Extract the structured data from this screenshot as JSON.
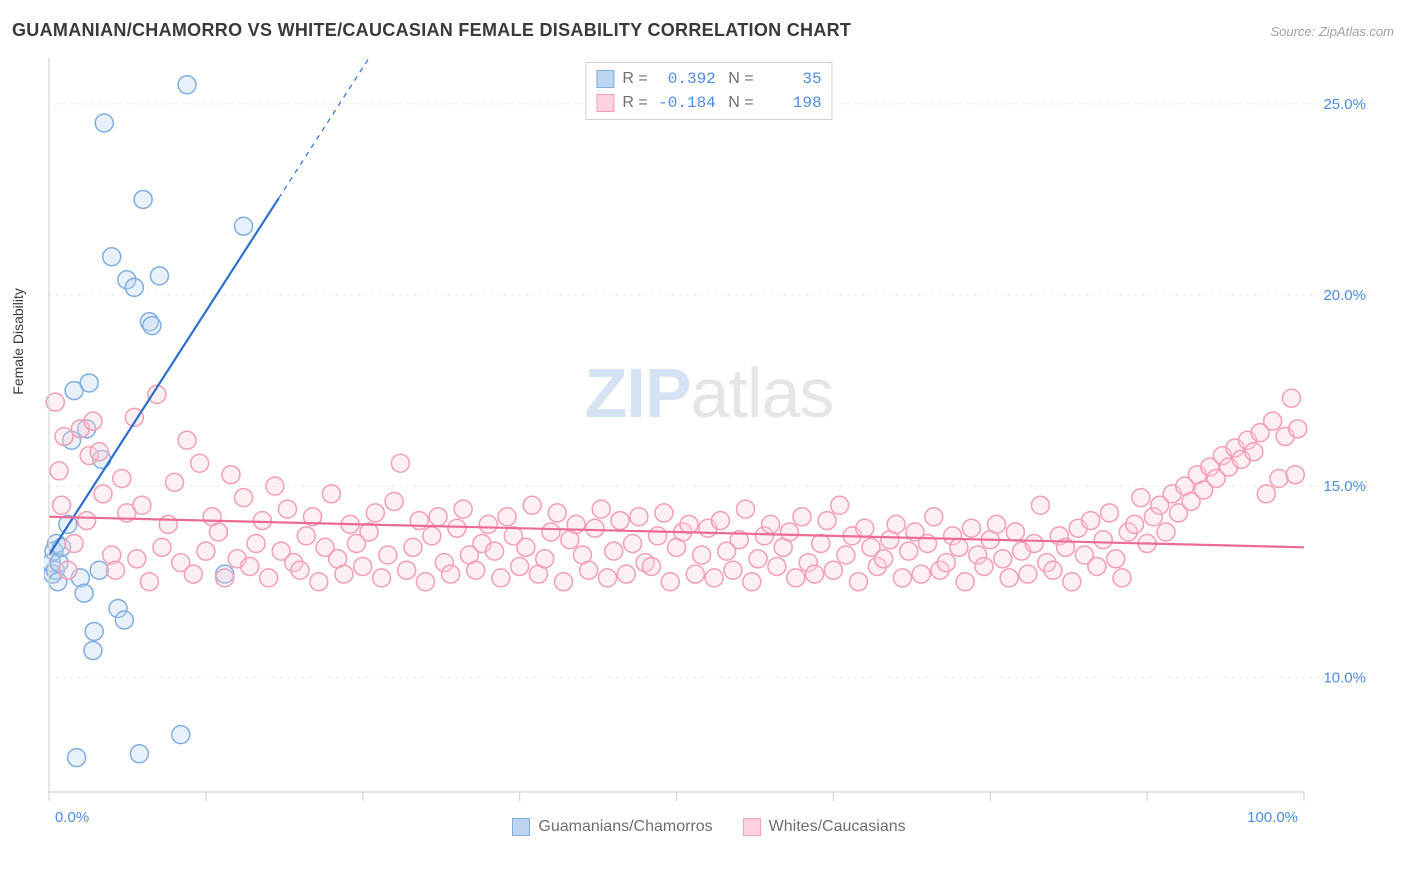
{
  "title": "GUAMANIAN/CHAMORRO VS WHITE/CAUCASIAN FEMALE DISABILITY CORRELATION CHART",
  "source": "Source: ZipAtlas.com",
  "y_axis_label": "Female Disability",
  "watermark": {
    "zip": "ZIP",
    "atlas": "atlas"
  },
  "chart": {
    "type": "scatter",
    "xlim": [
      0,
      100
    ],
    "ylim": [
      7.0,
      26.2
    ],
    "x_ticks": [
      0,
      100
    ],
    "x_tick_labels": [
      "0.0%",
      "100.0%"
    ],
    "x_minor_ticks": [
      12.5,
      25,
      37.5,
      50,
      62.5,
      75,
      87.5
    ],
    "y_ticks": [
      10,
      15,
      20,
      25
    ],
    "y_tick_labels": [
      "10.0%",
      "15.0%",
      "20.0%",
      "25.0%"
    ],
    "grid_color": "#e8e8e8",
    "axis_color": "#d5d5d5",
    "background_color": "#ffffff",
    "marker_radius": 9,
    "marker_stroke_width": 1.5,
    "marker_fill_opacity": 0.35,
    "series": [
      {
        "name": "Guamanians/Chamorros",
        "color_fill": "#bcd4ef",
        "color_stroke": "#7faee0",
        "trend": {
          "x1": 0,
          "y1": 13.2,
          "x2": 25.5,
          "y2": 26.2,
          "dashed_from_x": 18.3,
          "stroke": "#2d6fcf",
          "stroke_width": 2.2
        },
        "R": "0.392",
        "N": "35",
        "points": [
          [
            0.2,
            13.0
          ],
          [
            0.3,
            12.7
          ],
          [
            0.4,
            13.3
          ],
          [
            0.5,
            12.8
          ],
          [
            0.6,
            13.5
          ],
          [
            0.7,
            12.5
          ],
          [
            0.8,
            13.0
          ],
          [
            1.0,
            13.4
          ],
          [
            1.8,
            16.2
          ],
          [
            2.0,
            17.5
          ],
          [
            2.2,
            7.9
          ],
          [
            2.5,
            12.6
          ],
          [
            3.0,
            16.5
          ],
          [
            3.2,
            17.7
          ],
          [
            3.5,
            10.7
          ],
          [
            3.6,
            11.2
          ],
          [
            4.0,
            12.8
          ],
          [
            4.2,
            15.7
          ],
          [
            4.4,
            24.5
          ],
          [
            5.0,
            21.0
          ],
          [
            5.5,
            11.8
          ],
          [
            6.0,
            11.5
          ],
          [
            6.2,
            20.4
          ],
          [
            6.8,
            20.2
          ],
          [
            7.2,
            8.0
          ],
          [
            7.5,
            22.5
          ],
          [
            8.0,
            19.3
          ],
          [
            8.2,
            19.2
          ],
          [
            8.8,
            20.5
          ],
          [
            10.5,
            8.5
          ],
          [
            11.0,
            25.5
          ],
          [
            14.0,
            12.7
          ],
          [
            15.5,
            21.8
          ],
          [
            1.5,
            14.0
          ],
          [
            2.8,
            12.2
          ]
        ]
      },
      {
        "name": "Whites/Caucasians",
        "color_fill": "#fcd2dc",
        "color_stroke": "#f29eb4",
        "trend": {
          "x1": 0,
          "y1": 14.2,
          "x2": 100,
          "y2": 13.4,
          "stroke": "#ec6b93",
          "stroke_width": 2.2
        },
        "R": "-0.184",
        "N": "198",
        "points": [
          [
            0.5,
            17.2
          ],
          [
            0.8,
            15.4
          ],
          [
            1.0,
            14.5
          ],
          [
            1.2,
            16.3
          ],
          [
            1.5,
            12.8
          ],
          [
            2.0,
            13.5
          ],
          [
            2.5,
            16.5
          ],
          [
            3.0,
            14.1
          ],
          [
            3.2,
            15.8
          ],
          [
            3.5,
            16.7
          ],
          [
            4.0,
            15.9
          ],
          [
            4.3,
            14.8
          ],
          [
            5.0,
            13.2
          ],
          [
            5.3,
            12.8
          ],
          [
            5.8,
            15.2
          ],
          [
            6.2,
            14.3
          ],
          [
            6.8,
            16.8
          ],
          [
            7.0,
            13.1
          ],
          [
            7.4,
            14.5
          ],
          [
            8.0,
            12.5
          ],
          [
            8.6,
            17.4
          ],
          [
            9.0,
            13.4
          ],
          [
            9.5,
            14.0
          ],
          [
            10.0,
            15.1
          ],
          [
            10.5,
            13.0
          ],
          [
            11.0,
            16.2
          ],
          [
            11.5,
            12.7
          ],
          [
            12.0,
            15.6
          ],
          [
            12.5,
            13.3
          ],
          [
            13.0,
            14.2
          ],
          [
            13.5,
            13.8
          ],
          [
            14.0,
            12.6
          ],
          [
            14.5,
            15.3
          ],
          [
            15.0,
            13.1
          ],
          [
            15.5,
            14.7
          ],
          [
            16.0,
            12.9
          ],
          [
            16.5,
            13.5
          ],
          [
            17.0,
            14.1
          ],
          [
            17.5,
            12.6
          ],
          [
            18.0,
            15.0
          ],
          [
            18.5,
            13.3
          ],
          [
            19.0,
            14.4
          ],
          [
            19.5,
            13.0
          ],
          [
            20.0,
            12.8
          ],
          [
            20.5,
            13.7
          ],
          [
            21.0,
            14.2
          ],
          [
            21.5,
            12.5
          ],
          [
            22.0,
            13.4
          ],
          [
            22.5,
            14.8
          ],
          [
            23.0,
            13.1
          ],
          [
            23.5,
            12.7
          ],
          [
            24.0,
            14.0
          ],
          [
            24.5,
            13.5
          ],
          [
            25.0,
            12.9
          ],
          [
            25.5,
            13.8
          ],
          [
            26.0,
            14.3
          ],
          [
            26.5,
            12.6
          ],
          [
            27.0,
            13.2
          ],
          [
            27.5,
            14.6
          ],
          [
            28.0,
            15.6
          ],
          [
            28.5,
            12.8
          ],
          [
            29.0,
            13.4
          ],
          [
            29.5,
            14.1
          ],
          [
            30.0,
            12.5
          ],
          [
            30.5,
            13.7
          ],
          [
            31.0,
            14.2
          ],
          [
            31.5,
            13.0
          ],
          [
            32.0,
            12.7
          ],
          [
            32.5,
            13.9
          ],
          [
            33.0,
            14.4
          ],
          [
            33.5,
            13.2
          ],
          [
            34.0,
            12.8
          ],
          [
            34.5,
            13.5
          ],
          [
            35.0,
            14.0
          ],
          [
            35.5,
            13.3
          ],
          [
            36.0,
            12.6
          ],
          [
            36.5,
            14.2
          ],
          [
            37.0,
            13.7
          ],
          [
            37.5,
            12.9
          ],
          [
            38.0,
            13.4
          ],
          [
            38.5,
            14.5
          ],
          [
            39.0,
            12.7
          ],
          [
            39.5,
            13.1
          ],
          [
            40.0,
            13.8
          ],
          [
            40.5,
            14.3
          ],
          [
            41.0,
            12.5
          ],
          [
            41.5,
            13.6
          ],
          [
            42.0,
            14.0
          ],
          [
            42.5,
            13.2
          ],
          [
            43.0,
            12.8
          ],
          [
            43.5,
            13.9
          ],
          [
            44.0,
            14.4
          ],
          [
            44.5,
            12.6
          ],
          [
            45.0,
            13.3
          ],
          [
            45.5,
            14.1
          ],
          [
            46.0,
            12.7
          ],
          [
            46.5,
            13.5
          ],
          [
            47.0,
            14.2
          ],
          [
            47.5,
            13.0
          ],
          [
            48.0,
            12.9
          ],
          [
            48.5,
            13.7
          ],
          [
            49.0,
            14.3
          ],
          [
            49.5,
            12.5
          ],
          [
            50.0,
            13.4
          ],
          [
            50.5,
            13.8
          ],
          [
            51.0,
            14.0
          ],
          [
            51.5,
            12.7
          ],
          [
            52.0,
            13.2
          ],
          [
            52.5,
            13.9
          ],
          [
            53.0,
            12.6
          ],
          [
            53.5,
            14.1
          ],
          [
            54.0,
            13.3
          ],
          [
            54.5,
            12.8
          ],
          [
            55.0,
            13.6
          ],
          [
            55.5,
            14.4
          ],
          [
            56.0,
            12.5
          ],
          [
            56.5,
            13.1
          ],
          [
            57.0,
            13.7
          ],
          [
            57.5,
            14.0
          ],
          [
            58.0,
            12.9
          ],
          [
            58.5,
            13.4
          ],
          [
            59.0,
            13.8
          ],
          [
            59.5,
            12.6
          ],
          [
            60.0,
            14.2
          ],
          [
            60.5,
            13.0
          ],
          [
            61.0,
            12.7
          ],
          [
            61.5,
            13.5
          ],
          [
            62.0,
            14.1
          ],
          [
            62.5,
            12.8
          ],
          [
            63.0,
            14.5
          ],
          [
            63.5,
            13.2
          ],
          [
            64.0,
            13.7
          ],
          [
            64.5,
            12.5
          ],
          [
            65.0,
            13.9
          ],
          [
            65.5,
            13.4
          ],
          [
            66.0,
            12.9
          ],
          [
            66.5,
            13.1
          ],
          [
            67.0,
            13.6
          ],
          [
            67.5,
            14.0
          ],
          [
            68.0,
            12.6
          ],
          [
            68.5,
            13.3
          ],
          [
            69.0,
            13.8
          ],
          [
            69.5,
            12.7
          ],
          [
            70.0,
            13.5
          ],
          [
            70.5,
            14.2
          ],
          [
            71.0,
            12.8
          ],
          [
            71.5,
            13.0
          ],
          [
            72.0,
            13.7
          ],
          [
            72.5,
            13.4
          ],
          [
            73.0,
            12.5
          ],
          [
            73.5,
            13.9
          ],
          [
            74.0,
            13.2
          ],
          [
            74.5,
            12.9
          ],
          [
            75.0,
            13.6
          ],
          [
            75.5,
            14.0
          ],
          [
            76.0,
            13.1
          ],
          [
            76.5,
            12.6
          ],
          [
            77.0,
            13.8
          ],
          [
            77.5,
            13.3
          ],
          [
            78.0,
            12.7
          ],
          [
            78.5,
            13.5
          ],
          [
            79.0,
            14.5
          ],
          [
            79.5,
            13.0
          ],
          [
            80.0,
            12.8
          ],
          [
            80.5,
            13.7
          ],
          [
            81.0,
            13.4
          ],
          [
            81.5,
            12.5
          ],
          [
            82.0,
            13.9
          ],
          [
            82.5,
            13.2
          ],
          [
            83.0,
            14.1
          ],
          [
            83.5,
            12.9
          ],
          [
            84.0,
            13.6
          ],
          [
            84.5,
            14.3
          ],
          [
            85.0,
            13.1
          ],
          [
            85.5,
            12.6
          ],
          [
            86.0,
            13.8
          ],
          [
            86.5,
            14.0
          ],
          [
            87.0,
            14.7
          ],
          [
            87.5,
            13.5
          ],
          [
            88.0,
            14.2
          ],
          [
            88.5,
            14.5
          ],
          [
            89.0,
            13.8
          ],
          [
            89.5,
            14.8
          ],
          [
            90.0,
            14.3
          ],
          [
            90.5,
            15.0
          ],
          [
            91.0,
            14.6
          ],
          [
            91.5,
            15.3
          ],
          [
            92.0,
            14.9
          ],
          [
            92.5,
            15.5
          ],
          [
            93.0,
            15.2
          ],
          [
            93.5,
            15.8
          ],
          [
            94.0,
            15.5
          ],
          [
            94.5,
            16.0
          ],
          [
            95.0,
            15.7
          ],
          [
            95.5,
            16.2
          ],
          [
            96.0,
            15.9
          ],
          [
            96.5,
            16.4
          ],
          [
            97.0,
            14.8
          ],
          [
            97.5,
            16.7
          ],
          [
            98.0,
            15.2
          ],
          [
            98.5,
            16.3
          ],
          [
            99.0,
            17.3
          ],
          [
            99.3,
            15.3
          ],
          [
            99.5,
            16.5
          ]
        ]
      }
    ]
  },
  "legend_bottom": [
    {
      "label": "Guamanians/Chamorros",
      "fill": "#bcd4ef",
      "stroke": "#7faee0"
    },
    {
      "label": "Whites/Caucasians",
      "fill": "#fcd2dc",
      "stroke": "#f29eb4"
    }
  ]
}
